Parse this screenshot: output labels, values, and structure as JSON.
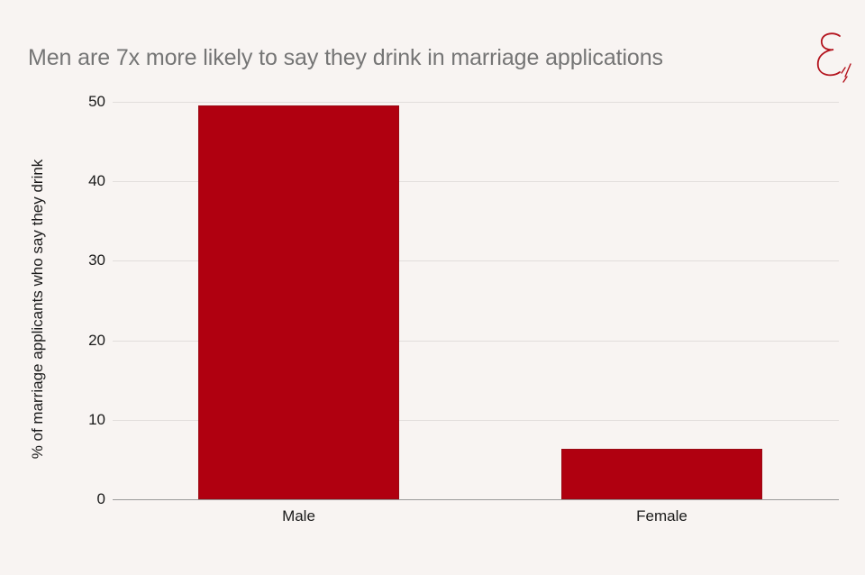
{
  "title": "Men are 7x more likely to say they drink in marriage applications",
  "logo": {
    "icon": "script-e-logo",
    "color": "#b3121c"
  },
  "colors": {
    "bar": "#b00010",
    "background": "#f8f4f2",
    "title": "#757575",
    "grid": "#e2dedc"
  },
  "y_ticks": [
    "0",
    "10",
    "20",
    "30",
    "40",
    "50"
  ],
  "chart_data": {
    "type": "bar",
    "title": "Men are 7x more likely to say they drink in marriage applications",
    "xlabel": "",
    "ylabel": "% of marriage applicants who say they drink",
    "categories": [
      "Male",
      "Female"
    ],
    "values": [
      49.5,
      6.4
    ],
    "ylim": [
      0,
      50
    ],
    "yticks": [
      0,
      10,
      20,
      30,
      40,
      50
    ],
    "grid": true,
    "legend": null
  }
}
